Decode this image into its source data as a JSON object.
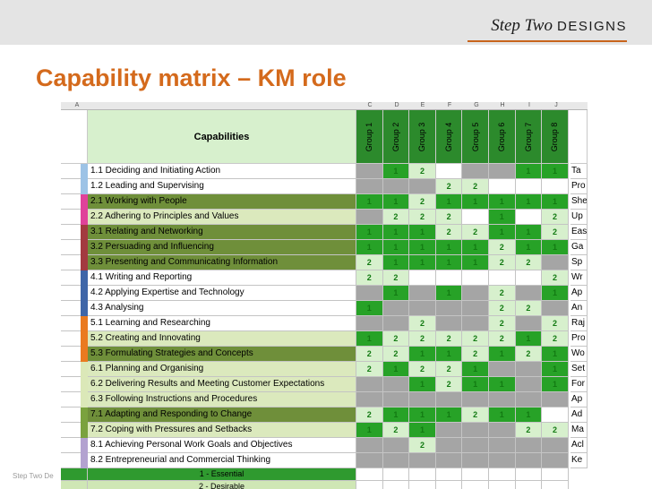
{
  "brand": {
    "script": "Step Two",
    "caps": "DESIGNS"
  },
  "title": "Capability matrix – KM role",
  "footer": "Step Two De",
  "column_letters": [
    "A",
    "",
    "",
    "C",
    "D",
    "E",
    "F",
    "G",
    "H",
    "I",
    "J",
    ""
  ],
  "header": {
    "capabilities_label": "Capabilities",
    "groups": [
      "Group 1",
      "Group 2",
      "Group 3",
      "Group 4",
      "Group 5",
      "Group 6",
      "Group 7",
      "Group 8"
    ]
  },
  "colors": {
    "bright_green": "#27a227",
    "dark_green": "#127a12",
    "pale_green": "#d7f0cd",
    "grey": "#a5a5a5",
    "row_dark": "#6f8f3a",
    "row_light": "#dbe9bd",
    "legend_dark": "#2f9a2f",
    "legend_light": "#cfe7b5"
  },
  "rows": [
    {
      "label": "1.1 Deciding and Initiating Action",
      "cat": "#9dc3e6",
      "bg": "white",
      "cells": [
        "g",
        "b1",
        "p2",
        "e",
        "g",
        "g",
        "b1",
        "b1"
      ],
      "side": "Ta"
    },
    {
      "label": "1.2 Leading and Supervising",
      "cat": "#9dc3e6",
      "bg": "white",
      "cells": [
        "g",
        "g",
        "g",
        "p2",
        "p2",
        "e",
        "e",
        "e"
      ],
      "side": "Pro"
    },
    {
      "label": "2.1 Working with People",
      "cat": "#e0429a",
      "bg": "dark",
      "cells": [
        "b1",
        "b1",
        "p2",
        "b1",
        "b1",
        "b1",
        "b1",
        "b1"
      ],
      "side": "She"
    },
    {
      "label": "2.2 Adhering to Principles and Values",
      "cat": "#e0429a",
      "bg": "light",
      "cells": [
        "g",
        "p2",
        "p2",
        "p2",
        "e",
        "b1",
        "e",
        "p2"
      ],
      "side": "Up"
    },
    {
      "label": "3.1 Relating and Networking",
      "cat": "#a33a40",
      "bg": "dark",
      "cells": [
        "b1",
        "b1",
        "b1",
        "p2",
        "p2",
        "b1",
        "b1",
        "p2"
      ],
      "side": "Eas"
    },
    {
      "label": "3.2 Persuading and Influencing",
      "cat": "#a33a40",
      "bg": "dark",
      "cells": [
        "b1",
        "b1",
        "b1",
        "b1",
        "b1",
        "p2",
        "b1",
        "b1"
      ],
      "side": "Ga"
    },
    {
      "label": "3.3 Presenting and Communicating Information",
      "cat": "#a33a40",
      "bg": "dark",
      "cells": [
        "p2",
        "b1",
        "b1",
        "b1",
        "b1",
        "p2",
        "p2",
        "g"
      ],
      "side": "Sp"
    },
    {
      "label": "4.1 Writing and Reporting",
      "cat": "#3f66a8",
      "bg": "white",
      "cells": [
        "p2",
        "p2",
        "e",
        "e",
        "e",
        "e",
        "e",
        "p2"
      ],
      "side": "Wr"
    },
    {
      "label": "4.2 Applying Expertise and Technology",
      "cat": "#3f66a8",
      "bg": "white",
      "cells": [
        "g",
        "b1",
        "g",
        "b1",
        "g",
        "p2",
        "g",
        "b1"
      ],
      "side": "Ap"
    },
    {
      "label": "4.3 Analysing",
      "cat": "#3f66a8",
      "bg": "white",
      "cells": [
        "b1",
        "g",
        "g",
        "g",
        "g",
        "p2",
        "p2",
        "g"
      ],
      "side": "An"
    },
    {
      "label": "5.1 Learning and Researching",
      "cat": "#ea7a20",
      "bg": "white",
      "cells": [
        "g",
        "g",
        "p2",
        "g",
        "g",
        "p2",
        "g",
        "p2"
      ],
      "side": "Raj"
    },
    {
      "label": "5.2 Creating and Innovating",
      "cat": "#ea7a20",
      "bg": "light",
      "cells": [
        "b1",
        "p2",
        "p2",
        "p2",
        "p2",
        "p2",
        "b1",
        "p2"
      ],
      "side": "Pro"
    },
    {
      "label": "5.3 Formulating Strategies and Concepts",
      "cat": "#ea7a20",
      "bg": "dark",
      "cells": [
        "p2",
        "p2",
        "b1",
        "b1",
        "p2",
        "b1",
        "p2",
        "b1"
      ],
      "side": "Wo"
    },
    {
      "label": "6.1 Planning and Organising",
      "cat": "#dbe8b8",
      "bg": "light",
      "cells": [
        "p2",
        "b1",
        "p2",
        "p2",
        "b1",
        "g",
        "g",
        "b1"
      ],
      "side": "Set"
    },
    {
      "label": "6.2 Delivering Results and Meeting Customer Expectations",
      "cat": "#dbe8b8",
      "bg": "light",
      "cells": [
        "g",
        "g",
        "b1",
        "p2",
        "b1",
        "b1",
        "g",
        "b1"
      ],
      "side": "For"
    },
    {
      "label": "6.3 Following Instructions and Procedures",
      "cat": "#dbe8b8",
      "bg": "light",
      "cells": [
        "g",
        "g",
        "g",
        "g",
        "g",
        "g",
        "g",
        "g"
      ],
      "side": "Ap"
    },
    {
      "label": "7.1 Adapting and Responding to Change",
      "cat": "#7aa23e",
      "bg": "dark",
      "cells": [
        "p2",
        "b1",
        "b1",
        "b1",
        "p2",
        "b1",
        "b1",
        "e"
      ],
      "side": "Ad"
    },
    {
      "label": "7.2 Coping with Pressures and Setbacks",
      "cat": "#7aa23e",
      "bg": "light",
      "cells": [
        "b1",
        "p2",
        "b1",
        "g",
        "g",
        "g",
        "p2",
        "p2"
      ],
      "side": "Ma"
    },
    {
      "label": "8.1 Achieving Personal Work Goals and Objectives",
      "cat": "#b3a2d0",
      "bg": "white",
      "cells": [
        "g",
        "g",
        "p2",
        "g",
        "g",
        "g",
        "g",
        "g"
      ],
      "side": "Acl"
    },
    {
      "label": "8.2 Entrepreneurial and Commercial Thinking",
      "cat": "#b3a2d0",
      "bg": "white",
      "cells": [
        "g",
        "g",
        "g",
        "g",
        "g",
        "g",
        "g",
        "g"
      ],
      "side": "Ke"
    }
  ],
  "legend": [
    {
      "label": "1 - Essential",
      "style": "dark"
    },
    {
      "label": "2 - Desirable",
      "style": "light"
    }
  ]
}
